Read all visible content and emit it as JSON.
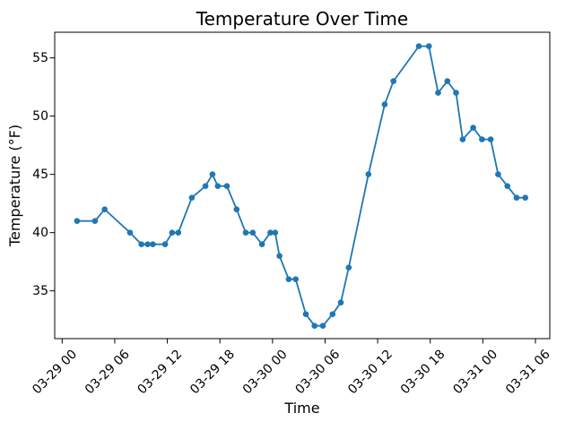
{
  "figure": {
    "background": "#ffffff",
    "axis_color": "#000000",
    "line_color": "#1f77b4"
  },
  "chart_data": {
    "type": "line",
    "title": "Temperature Over Time",
    "xlabel": "Time",
    "ylabel": "Temperature (°F)",
    "marker": "circle",
    "grid": false,
    "legend_position": "none",
    "line_color": "#1f77b4",
    "x_unit": "hours since 03-29 00:00",
    "x_tick_hours": [
      0,
      6,
      12,
      18,
      24,
      30,
      36,
      42,
      48,
      54
    ],
    "x_tick_labels": [
      "03-29 00",
      "03-29 06",
      "03-29 12",
      "03-29 18",
      "03-30 00",
      "03-30 06",
      "03-30 12",
      "03-30 18",
      "03-31 00",
      "03-31 06"
    ],
    "y_ticks": [
      35,
      40,
      45,
      50,
      55
    ],
    "xlim_hours": [
      -0.85,
      55.64
    ],
    "ylim": [
      30.9,
      57.2
    ],
    "points": [
      [
        1.7,
        41
      ],
      [
        3.75,
        41
      ],
      [
        4.85,
        42
      ],
      [
        7.75,
        40
      ],
      [
        9.05,
        39
      ],
      [
        9.75,
        39
      ],
      [
        10.35,
        39
      ],
      [
        11.75,
        39
      ],
      [
        12.55,
        40
      ],
      [
        13.25,
        40
      ],
      [
        14.8,
        43
      ],
      [
        16.35,
        44
      ],
      [
        17.15,
        45
      ],
      [
        17.75,
        44
      ],
      [
        18.8,
        44
      ],
      [
        19.9,
        42
      ],
      [
        20.95,
        40
      ],
      [
        21.75,
        40
      ],
      [
        22.8,
        39
      ],
      [
        23.75,
        40
      ],
      [
        24.3,
        40
      ],
      [
        24.8,
        38
      ],
      [
        25.85,
        36
      ],
      [
        26.65,
        36
      ],
      [
        27.8,
        33
      ],
      [
        28.8,
        32
      ],
      [
        29.75,
        32
      ],
      [
        30.85,
        33
      ],
      [
        31.8,
        34
      ],
      [
        32.7,
        37
      ],
      [
        34.95,
        45
      ],
      [
        36.8,
        51
      ],
      [
        37.8,
        53
      ],
      [
        40.7,
        56
      ],
      [
        41.85,
        56
      ],
      [
        42.9,
        52
      ],
      [
        43.95,
        53
      ],
      [
        44.95,
        52
      ],
      [
        45.7,
        48
      ],
      [
        46.9,
        49
      ],
      [
        47.9,
        48
      ],
      [
        48.9,
        48
      ],
      [
        49.75,
        45
      ],
      [
        50.8,
        44
      ],
      [
        51.85,
        43
      ],
      [
        52.85,
        43
      ]
    ]
  }
}
